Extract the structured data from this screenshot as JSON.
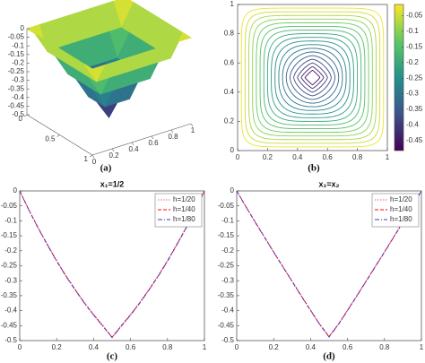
{
  "chart_data": [
    {
      "type": "surface",
      "caption": "(a)",
      "x": [
        0,
        0.125,
        0.25,
        0.375,
        0.5,
        0.625,
        0.75,
        0.875,
        1
      ],
      "y": [
        0,
        0.125,
        0.25,
        0.375,
        0.5,
        0.625,
        0.75,
        0.875,
        1
      ],
      "z": [
        [
          0,
          0,
          0,
          0,
          0,
          0,
          0,
          0,
          0
        ],
        [
          0,
          -0.125,
          -0.125,
          -0.125,
          -0.125,
          -0.125,
          -0.125,
          -0.125,
          0
        ],
        [
          0,
          -0.125,
          -0.25,
          -0.25,
          -0.25,
          -0.25,
          -0.25,
          -0.125,
          0
        ],
        [
          0,
          -0.125,
          -0.25,
          -0.375,
          -0.375,
          -0.375,
          -0.25,
          -0.125,
          0
        ],
        [
          0,
          -0.125,
          -0.25,
          -0.375,
          -0.49,
          -0.375,
          -0.25,
          -0.125,
          0
        ],
        [
          0,
          -0.125,
          -0.25,
          -0.375,
          -0.375,
          -0.375,
          -0.25,
          -0.125,
          0
        ],
        [
          0,
          -0.125,
          -0.25,
          -0.25,
          -0.25,
          -0.25,
          -0.25,
          -0.125,
          0
        ],
        [
          0,
          -0.125,
          -0.125,
          -0.125,
          -0.125,
          -0.125,
          -0.125,
          -0.125,
          0
        ],
        [
          0,
          0,
          0,
          0,
          0,
          0,
          0,
          0,
          0
        ]
      ],
      "zlim": [
        -0.5,
        0
      ],
      "zticks": [
        0,
        -0.05,
        -0.1,
        -0.15,
        -0.2,
        -0.25,
        -0.3,
        -0.35,
        -0.4,
        -0.45,
        -0.5
      ],
      "xticks": [
        0,
        0.5,
        1
      ],
      "yticks": [
        0,
        0.2,
        0.4,
        0.6,
        0.8,
        1
      ]
    },
    {
      "type": "contour",
      "caption": "(b)",
      "levels": [
        -0.025,
        -0.05,
        -0.075,
        -0.1,
        -0.125,
        -0.15,
        -0.175,
        -0.2,
        -0.225,
        -0.25,
        -0.275,
        -0.3,
        -0.325,
        -0.35,
        -0.375,
        -0.4,
        -0.425,
        -0.45
      ],
      "xlim": [
        0,
        1
      ],
      "ylim": [
        0,
        1
      ],
      "xticks": [
        0,
        0.2,
        0.4,
        0.6,
        0.8,
        1
      ],
      "yticks": [
        0,
        0.2,
        0.4,
        0.6,
        0.8,
        1
      ],
      "clim": [
        -0.482,
        -0.014
      ],
      "cticks": [
        -0.05,
        -0.1,
        -0.15,
        -0.2,
        -0.25,
        -0.3,
        -0.35,
        -0.4,
        -0.45
      ]
    },
    {
      "type": "line",
      "title": "x₁=1/2",
      "caption": "(c)",
      "x": [
        0,
        0.05,
        0.1,
        0.15,
        0.2,
        0.25,
        0.3,
        0.35,
        0.4,
        0.45,
        0.5,
        0.55,
        0.6,
        0.65,
        0.7,
        0.75,
        0.8,
        0.85,
        0.9,
        0.95,
        1
      ],
      "series": [
        {
          "name": "h=1/20",
          "color": "#ff5a8c",
          "dash": "dotted",
          "values": [
            0,
            -0.063,
            -0.123,
            -0.178,
            -0.232,
            -0.282,
            -0.328,
            -0.372,
            -0.412,
            -0.449,
            -0.488,
            -0.449,
            -0.412,
            -0.372,
            -0.328,
            -0.282,
            -0.232,
            -0.178,
            -0.123,
            -0.063,
            0
          ]
        },
        {
          "name": "h=1/40",
          "color": "#ff0000",
          "dash": "dashed",
          "values": [
            0,
            -0.064,
            -0.124,
            -0.18,
            -0.234,
            -0.284,
            -0.33,
            -0.374,
            -0.414,
            -0.451,
            -0.489,
            -0.451,
            -0.414,
            -0.374,
            -0.33,
            -0.284,
            -0.234,
            -0.18,
            -0.124,
            -0.064,
            0
          ]
        },
        {
          "name": "h=1/80",
          "color": "#3a3ac8",
          "dash": "dashdot",
          "values": [
            0,
            -0.065,
            -0.125,
            -0.181,
            -0.235,
            -0.285,
            -0.331,
            -0.375,
            -0.415,
            -0.452,
            -0.49,
            -0.452,
            -0.415,
            -0.375,
            -0.331,
            -0.285,
            -0.235,
            -0.181,
            -0.125,
            -0.065,
            0
          ]
        }
      ],
      "xlim": [
        0,
        1
      ],
      "ylim": [
        -0.5,
        0
      ],
      "xticks": [
        0,
        0.2,
        0.4,
        0.6,
        0.8,
        1
      ],
      "yticks": [
        0,
        -0.05,
        -0.1,
        -0.15,
        -0.2,
        -0.25,
        -0.3,
        -0.35,
        -0.4,
        -0.45,
        -0.5
      ],
      "legend": "upper right"
    },
    {
      "type": "line",
      "title": "x₁=x₂",
      "caption": "(d)",
      "x": [
        0,
        0.05,
        0.1,
        0.15,
        0.2,
        0.25,
        0.3,
        0.35,
        0.4,
        0.45,
        0.5,
        0.55,
        0.6,
        0.65,
        0.7,
        0.75,
        0.8,
        0.85,
        0.9,
        0.95,
        1
      ],
      "series": [
        {
          "name": "h=1/20",
          "color": "#ff5a8c",
          "dash": "dotted",
          "values": [
            0,
            -0.052,
            -0.103,
            -0.153,
            -0.203,
            -0.252,
            -0.301,
            -0.35,
            -0.398,
            -0.445,
            -0.485,
            -0.445,
            -0.398,
            -0.35,
            -0.301,
            -0.252,
            -0.203,
            -0.153,
            -0.103,
            -0.052,
            0
          ]
        },
        {
          "name": "h=1/40",
          "color": "#ff0000",
          "dash": "dashed",
          "values": [
            0,
            -0.053,
            -0.104,
            -0.154,
            -0.204,
            -0.253,
            -0.302,
            -0.351,
            -0.399,
            -0.446,
            -0.487,
            -0.446,
            -0.399,
            -0.351,
            -0.302,
            -0.253,
            -0.204,
            -0.154,
            -0.104,
            -0.053,
            0
          ]
        },
        {
          "name": "h=1/80",
          "color": "#3a3ac8",
          "dash": "dashdot",
          "values": [
            0,
            -0.053,
            -0.105,
            -0.155,
            -0.205,
            -0.254,
            -0.303,
            -0.352,
            -0.4,
            -0.447,
            -0.488,
            -0.447,
            -0.4,
            -0.352,
            -0.303,
            -0.254,
            -0.205,
            -0.155,
            -0.105,
            -0.053,
            0
          ]
        }
      ],
      "xlim": [
        0,
        1
      ],
      "ylim": [
        -0.5,
        0
      ],
      "xticks": [
        0,
        0.2,
        0.4,
        0.6,
        0.8,
        1
      ],
      "yticks": [
        0,
        -0.05,
        -0.1,
        -0.15,
        -0.2,
        -0.25,
        -0.3,
        -0.35,
        -0.4,
        -0.45,
        -0.5
      ],
      "legend": "upper right"
    }
  ]
}
